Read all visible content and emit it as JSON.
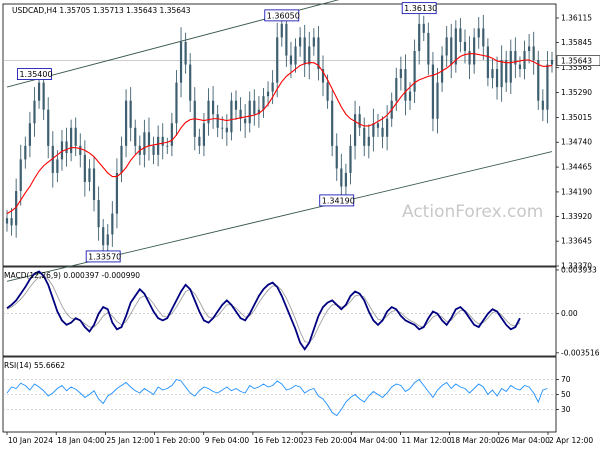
{
  "chart_data": [
    {
      "type": "candlestick",
      "pane": "price",
      "header": "USDCAD,H4  1.35705 1.35713 1.35643 1.35643",
      "ylim": [
        1.3337,
        1.3627
      ],
      "y_ticks": [
        "1.36115",
        "1.35845",
        "1.35565",
        "1.35290",
        "1.35015",
        "1.34740",
        "1.34465",
        "1.34190",
        "1.33920",
        "1.33645",
        "1.33370"
      ],
      "current_price": "1.35643",
      "x_ticks": [
        "10 Jan 2024",
        "18 Jan 04:00",
        "25 Jan 12:00",
        "1 Feb 20:00",
        "9 Feb 04:00",
        "16 Feb 12:00",
        "23 Feb 20:00",
        "4 Mar 04:00",
        "11 Mar 12:00",
        "18 Mar 20:00",
        "26 Mar 04:00",
        "2 Apr 12:00"
      ],
      "close_series": [
        1.339,
        1.3382,
        1.342,
        1.3455,
        1.347,
        1.3495,
        1.352,
        1.354,
        1.351,
        1.347,
        1.344,
        1.3455,
        1.3475,
        1.3462,
        1.349,
        1.347,
        1.346,
        1.343,
        1.3445,
        1.341,
        1.338,
        1.336,
        1.3372,
        1.3395,
        1.344,
        1.347,
        1.352,
        1.349,
        1.347,
        1.346,
        1.3485,
        1.347,
        1.346,
        1.348,
        1.347,
        1.347,
        1.3495,
        1.354,
        1.3585,
        1.356,
        1.352,
        1.348,
        1.347,
        1.3495,
        1.352,
        1.3505,
        1.349,
        1.349,
        1.3485,
        1.352,
        1.351,
        1.35,
        1.3495,
        1.352,
        1.3505,
        1.351,
        1.3525,
        1.353,
        1.354,
        1.359,
        1.3605,
        1.357,
        1.356,
        1.358,
        1.359,
        1.356,
        1.358,
        1.359,
        1.3555,
        1.354,
        1.352,
        1.347,
        1.3445,
        1.3425,
        1.344,
        1.347,
        1.3505,
        1.349,
        1.347,
        1.348,
        1.3495,
        1.349,
        1.348,
        1.35,
        1.352,
        1.3545,
        1.3555,
        1.352,
        1.353,
        1.3575,
        1.3605,
        1.3595,
        1.356,
        1.35,
        1.354,
        1.357,
        1.359,
        1.356,
        1.36,
        1.3585,
        1.3575,
        1.356,
        1.359,
        1.36,
        1.358,
        1.3545,
        1.3555,
        1.3535,
        1.3565,
        1.354,
        1.3575,
        1.356,
        1.3555,
        1.3575,
        1.358,
        1.3565,
        1.352,
        1.351,
        1.356,
        1.3565
      ],
      "moving_average": [
        1.3395,
        1.3398,
        1.3402,
        1.341,
        1.3418,
        1.3425,
        1.3434,
        1.3442,
        1.3448,
        1.3452,
        1.3456,
        1.346,
        1.3464,
        1.3466,
        1.3468,
        1.3468,
        1.3467,
        1.3465,
        1.3462,
        1.3458,
        1.3452,
        1.3446,
        1.344,
        1.3436,
        1.3436,
        1.344,
        1.3446,
        1.3454,
        1.346,
        1.3465,
        1.3468,
        1.347,
        1.3471,
        1.3472,
        1.3473,
        1.3474,
        1.3476,
        1.3482,
        1.349,
        1.3496,
        1.3499,
        1.35,
        1.3499,
        1.3498,
        1.3499,
        1.35,
        1.35,
        1.3499,
        1.3498,
        1.3499,
        1.35,
        1.3501,
        1.3502,
        1.3503,
        1.3504,
        1.3506,
        1.351,
        1.3516,
        1.3524,
        1.3533,
        1.3541,
        1.3547,
        1.3551,
        1.3555,
        1.3559,
        1.3561,
        1.3562,
        1.3562,
        1.3559,
        1.3552,
        1.3543,
        1.3533,
        1.3523,
        1.3513,
        1.3505,
        1.35,
        1.3497,
        1.3494,
        1.3492,
        1.3492,
        1.3494,
        1.3497,
        1.35,
        1.3504,
        1.351,
        1.3517,
        1.3524,
        1.353,
        1.3535,
        1.354,
        1.3543,
        1.3545,
        1.3547,
        1.3548,
        1.355,
        1.3553,
        1.3556,
        1.356,
        1.3565,
        1.3569,
        1.3571,
        1.3572,
        1.3572,
        1.3571,
        1.357,
        1.3569,
        1.3567,
        1.3564,
        1.3563,
        1.3562,
        1.3562,
        1.3563,
        1.3564,
        1.3565,
        1.3565,
        1.3563,
        1.356,
        1.3558,
        1.3558,
        1.3559
      ],
      "annotations": [
        {
          "label": "1.35400",
          "anchor_index": 6,
          "value": 1.354
        },
        {
          "label": "1.33570",
          "anchor_index": 21,
          "value": 1.3357
        },
        {
          "label": "1.36050",
          "anchor_index": 60,
          "value": 1.3605
        },
        {
          "label": "1.34190",
          "anchor_index": 72,
          "value": 1.3419
        },
        {
          "label": "1.36130",
          "anchor_index": 90,
          "value": 1.3613
        }
      ],
      "channel_upper": [
        {
          "x_index": 0,
          "value": 1.3535
        },
        {
          "x_index": 116,
          "value": 1.369
        }
      ],
      "channel_lower": [
        {
          "x_index": 14,
          "value": 1.3337
        },
        {
          "x_index": 116,
          "value": 1.346
        }
      ],
      "watermark": "ActionForex.com",
      "colors": {
        "candle": "#3e5f6f",
        "ma": "#ff0000",
        "channel": "#3a5a4a",
        "callout": "#0000aa"
      }
    },
    {
      "type": "line",
      "pane": "macd",
      "header": "MACD(12,26,9) 0.000397 -0.000990",
      "ylim": [
        -0.0038,
        0.0042
      ],
      "y_ticks": [
        "0.003933",
        "0.00",
        "-0.003516"
      ],
      "macd": [
        0.0005,
        0.0008,
        0.0012,
        0.0018,
        0.0024,
        0.0031,
        0.0036,
        0.0038,
        0.0034,
        0.0026,
        0.0014,
        0.0002,
        -0.0006,
        -0.001,
        -0.0008,
        -0.0004,
        -0.0006,
        -0.0012,
        -0.0016,
        -0.001,
        0.0,
        0.0006,
        0.0004,
        -0.0008,
        -0.0014,
        -0.0012,
        -0.0002,
        0.001,
        0.0016,
        0.0022,
        0.0018,
        0.001,
        0.0002,
        -0.0004,
        -0.0006,
        -0.0004,
        0.0004,
        0.0012,
        0.002,
        0.0026,
        0.0022,
        0.0012,
        0.0002,
        -0.0006,
        -0.0008,
        -0.0004,
        0.0002,
        0.0008,
        0.0012,
        0.0008,
        0.0002,
        -0.0004,
        -0.0006,
        0.0,
        0.0008,
        0.0016,
        0.0022,
        0.0026,
        0.0028,
        0.0024,
        0.0016,
        0.0006,
        -0.0004,
        -0.0014,
        -0.0026,
        -0.0032,
        -0.0026,
        -0.0014,
        -0.0002,
        0.0006,
        0.001,
        0.0012,
        0.0008,
        0.0004,
        0.0008,
        0.0016,
        0.002,
        0.0018,
        0.0012,
        0.0002,
        -0.0006,
        -0.001,
        -0.0006,
        0.0002,
        0.0006,
        0.0004,
        -0.0002,
        -0.0006,
        -0.0008,
        -0.001,
        -0.0014,
        -0.0012,
        -0.0004,
        0.0002,
        0.0,
        -0.0006,
        -0.001,
        -0.0004,
        0.0004,
        0.0006,
        0.0002,
        -0.0004,
        -0.001,
        -0.0012,
        -0.0006,
        0.0,
        0.0004,
        0.0002,
        -0.0004,
        -0.001,
        -0.0014,
        -0.0012,
        -0.0004
      ],
      "signal": [
        0.0004,
        0.0006,
        0.0009,
        0.0013,
        0.0018,
        0.0024,
        0.0029,
        0.0033,
        0.0034,
        0.0031,
        0.0025,
        0.0016,
        0.0007,
        0.0,
        -0.0004,
        -0.0005,
        -0.0006,
        -0.0009,
        -0.0012,
        -0.0012,
        -0.0008,
        -0.0002,
        0.0001,
        -0.0002,
        -0.0007,
        -0.001,
        -0.0007,
        0.0,
        0.0007,
        0.0014,
        0.0016,
        0.0014,
        0.0009,
        0.0003,
        -0.0002,
        -0.0003,
        0.0,
        0.0006,
        0.0013,
        0.002,
        0.0022,
        0.0018,
        0.0011,
        0.0003,
        -0.0003,
        -0.0004,
        -0.0002,
        0.0003,
        0.0008,
        0.0008,
        0.0005,
        0.0001,
        -0.0003,
        -0.0002,
        0.0003,
        0.001,
        0.0016,
        0.0021,
        0.0025,
        0.0025,
        0.0021,
        0.0014,
        0.0005,
        -0.0005,
        -0.0016,
        -0.0025,
        -0.0026,
        -0.0021,
        -0.0012,
        -0.0004,
        0.0003,
        0.0008,
        0.0008,
        0.0006,
        0.0007,
        0.0011,
        0.0016,
        0.0017,
        0.0015,
        0.0008,
        0.0001,
        -0.0005,
        -0.0006,
        -0.0002,
        0.0002,
        0.0003,
        0.0001,
        -0.0003,
        -0.0006,
        -0.0008,
        -0.0011,
        -0.0012,
        -0.0008,
        -0.0003,
        -0.0001,
        -0.0003,
        -0.0007,
        -0.0006,
        -0.0001,
        0.0003,
        0.0003,
        -0.0001,
        -0.0006,
        -0.0009,
        -0.0008,
        -0.0004,
        0.0001,
        0.0002,
        -0.0001,
        -0.0006,
        -0.001,
        -0.0011,
        -0.0008
      ],
      "colors": {
        "macd": "#000080",
        "signal": "#a0a0a0"
      }
    },
    {
      "type": "line",
      "pane": "rsi",
      "header": "RSI(14) 55.6662",
      "ylim": [
        0,
        100
      ],
      "y_ticks": [
        "70",
        "50",
        "30"
      ],
      "levels": [
        70,
        50,
        30
      ],
      "values": [
        52,
        60,
        58,
        65,
        62,
        56,
        64,
        60,
        55,
        48,
        52,
        58,
        62,
        55,
        60,
        57,
        52,
        46,
        50,
        55,
        44,
        38,
        48,
        52,
        58,
        62,
        66,
        60,
        55,
        52,
        58,
        54,
        50,
        60,
        56,
        58,
        62,
        70,
        68,
        60,
        52,
        48,
        55,
        60,
        58,
        54,
        52,
        56,
        60,
        55,
        58,
        54,
        52,
        62,
        58,
        60,
        64,
        60,
        62,
        68,
        64,
        56,
        58,
        62,
        60,
        52,
        56,
        58,
        48,
        44,
        36,
        26,
        22,
        30,
        40,
        46,
        50,
        44,
        40,
        48,
        54,
        50,
        46,
        52,
        60,
        64,
        62,
        54,
        58,
        66,
        70,
        62,
        54,
        46,
        56,
        62,
        66,
        58,
        64,
        60,
        58,
        52,
        58,
        64,
        60,
        50,
        56,
        48,
        58,
        54,
        62,
        58,
        56,
        62,
        60,
        52,
        40,
        56,
        58
      ],
      "colors": {
        "line": "#1e90ff"
      }
    }
  ]
}
